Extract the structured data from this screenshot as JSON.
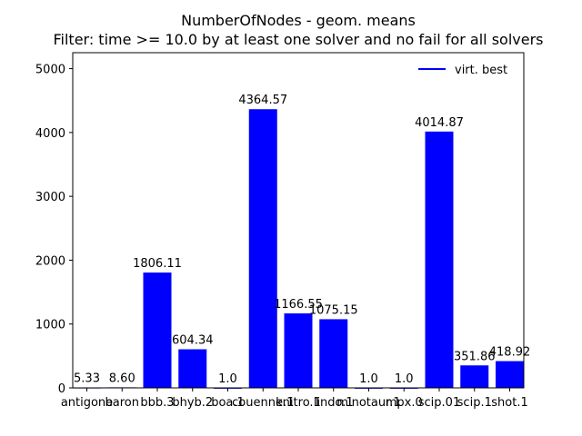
{
  "chart_data": {
    "type": "bar",
    "title": "NumberOfNodes - geom. means",
    "subtitle": "Filter: time >= 10.0 by at least one solver and no fail for all solvers",
    "xlabel": "",
    "ylabel": "",
    "categories": [
      "antigone",
      "baron",
      "bbb.3",
      "bhyb.2",
      "boa.1",
      "couenne.1",
      "knitro.1",
      "lindo.1",
      "minotaur.1",
      "mpx.0",
      "scip.01",
      "scip.1",
      "shot.1"
    ],
    "values": [
      5.33,
      8.6,
      1806.11,
      604.34,
      1.0,
      4364.57,
      1166.55,
      1075.15,
      1.0,
      1.0,
      4014.87,
      351.86,
      418.92
    ],
    "value_labels": [
      "5.33",
      "8.60",
      "1806.11",
      "604.34",
      "1.0",
      "4364.57",
      "1166.55",
      "1075.15",
      "1.0",
      "1.0",
      "4014.87",
      "351.86",
      "418.92"
    ],
    "series": [
      {
        "name": "virt. best",
        "color": "#0000ff"
      }
    ],
    "ylim": [
      0,
      5250
    ],
    "yticks": [
      0,
      1000,
      2000,
      3000,
      4000,
      5000
    ],
    "grid": false,
    "legend_position": "top-right",
    "bar_color": "#0000ff"
  }
}
